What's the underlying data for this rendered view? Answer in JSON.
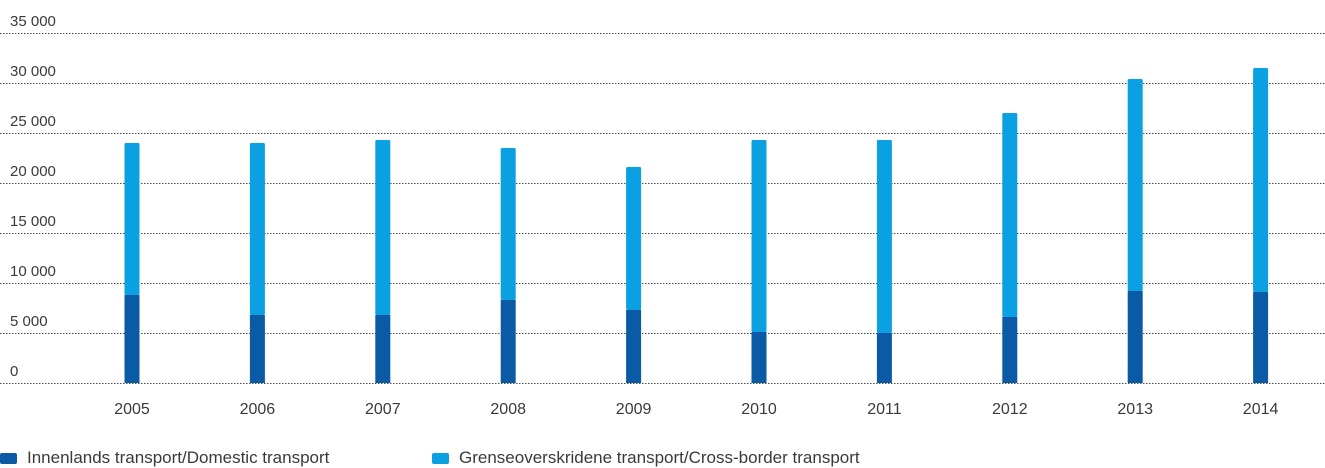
{
  "chart_data": {
    "type": "bar",
    "stacked": true,
    "categories": [
      "2005",
      "2006",
      "2007",
      "2008",
      "2009",
      "2010",
      "2011",
      "2012",
      "2013",
      "2014"
    ],
    "series": [
      {
        "name": "Innenlands transport/Domestic transport",
        "color": "#0a5aa5",
        "values": [
          8800,
          6800,
          6800,
          8300,
          7300,
          5100,
          5000,
          6600,
          9200,
          9100
        ]
      },
      {
        "name": "Grenseoverskridene transport/Cross-border transport",
        "color": "#0aa0e1",
        "values": [
          15200,
          17200,
          17500,
          15200,
          14300,
          19200,
          19300,
          20400,
          21200,
          22400
        ]
      }
    ],
    "yticks": [
      "0",
      "5 000",
      "10 000",
      "15 000",
      "20 000",
      "25 000",
      "30 000",
      "35 000"
    ],
    "ytick_values": [
      0,
      5000,
      10000,
      15000,
      20000,
      25000,
      30000,
      35000
    ],
    "ylim": [
      0,
      35000
    ],
    "grid": true,
    "legend_position": "bottom-left"
  }
}
